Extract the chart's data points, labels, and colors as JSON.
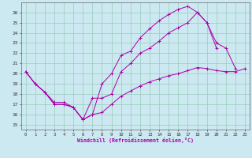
{
  "title": "",
  "xlabel": "Windchill (Refroidissement éolien,°C)",
  "ylabel": "",
  "bg_color": "#cce8f0",
  "line_color": "#aa00aa",
  "grid_color": "#99ccbb",
  "xlim": [
    -0.5,
    23.5
  ],
  "ylim": [
    14.5,
    27.0
  ],
  "xticks": [
    0,
    1,
    2,
    3,
    4,
    5,
    6,
    7,
    8,
    9,
    10,
    11,
    12,
    13,
    14,
    15,
    16,
    17,
    18,
    19,
    20,
    21,
    22,
    23
  ],
  "yticks": [
    15,
    16,
    17,
    18,
    19,
    20,
    21,
    22,
    23,
    24,
    25,
    26
  ],
  "line1_x": [
    0,
    1,
    2,
    3,
    4,
    5,
    6,
    7,
    8,
    9,
    10,
    11,
    12,
    13,
    14,
    15,
    16,
    17,
    18,
    19,
    20,
    21,
    22
  ],
  "line1_y": [
    20.2,
    19.0,
    18.2,
    17.0,
    17.0,
    16.7,
    15.5,
    16.0,
    19.0,
    20.0,
    21.8,
    22.2,
    23.5,
    24.4,
    25.2,
    25.8,
    26.3,
    26.6,
    26.0,
    25.0,
    23.0,
    22.5,
    20.5
  ],
  "line2_x": [
    0,
    1,
    2,
    3,
    4,
    5,
    6,
    7,
    8,
    9,
    10,
    11,
    12,
    13,
    14,
    15,
    16,
    17,
    18,
    19,
    20
  ],
  "line2_y": [
    20.2,
    19.0,
    18.2,
    17.0,
    17.0,
    16.7,
    15.5,
    17.6,
    17.6,
    18.0,
    20.2,
    21.0,
    22.0,
    22.5,
    23.2,
    24.0,
    24.5,
    25.0,
    26.0,
    25.0,
    22.5
  ],
  "line3_x": [
    0,
    1,
    2,
    3,
    4,
    5,
    6,
    7,
    8,
    9,
    10,
    11,
    12,
    13,
    14,
    15,
    16,
    17,
    18,
    19,
    20,
    21,
    22,
    23
  ],
  "line3_y": [
    20.2,
    19.0,
    18.2,
    17.2,
    17.2,
    16.7,
    15.5,
    16.0,
    16.2,
    17.0,
    17.8,
    18.3,
    18.8,
    19.2,
    19.5,
    19.8,
    20.0,
    20.3,
    20.6,
    20.5,
    20.3,
    20.2,
    20.2,
    20.5
  ]
}
